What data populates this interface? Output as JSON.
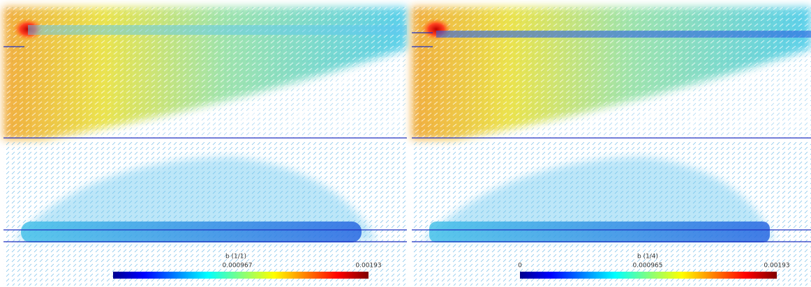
{
  "panels": [
    {
      "colorbar": {
        "title": "b (1/1)",
        "min_label": null,
        "mid_label": "0.000967",
        "max_label": "0.00193"
      }
    },
    {
      "colorbar": {
        "title": "b (1/4)",
        "min_label": "0",
        "mid_label": "0.000965",
        "max_label": "0.00193"
      }
    }
  ]
}
